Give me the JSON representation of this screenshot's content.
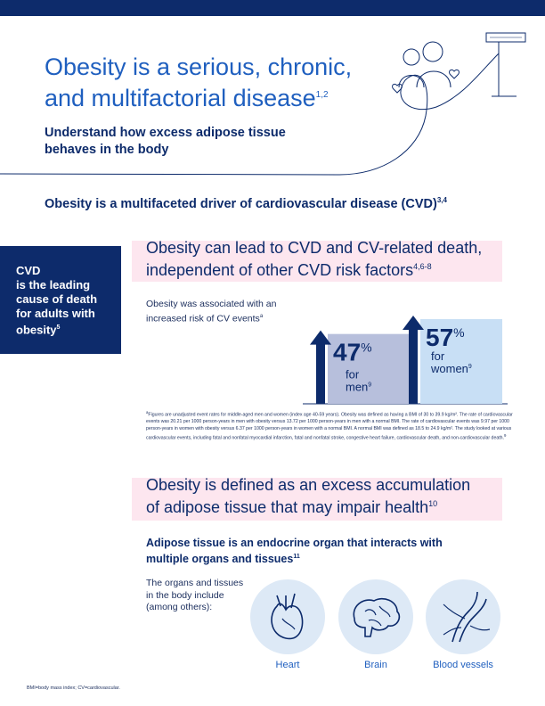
{
  "header": {
    "title_line1": "Obesity is a serious, chronic,",
    "title_line2": "and multifactorial disease",
    "title_ref": "1,2",
    "subtitle_line1": "Understand how excess adipose tissue",
    "subtitle_line2": "behaves in the body"
  },
  "section1": {
    "text": "Obesity is a multifaceted driver of cardiovascular disease (CVD)",
    "ref": "3,4"
  },
  "cvd_box": {
    "line1": "CVD",
    "line2": "is the leading",
    "line3": "cause of death",
    "line4": "for adults with",
    "line5": "obesity",
    "ref": "5"
  },
  "cv_heading": {
    "line1": "Obesity can lead to CVD and CV-related death,",
    "line2": "independent of other CVD risk factors",
    "ref": "4,6-8"
  },
  "association": {
    "line1": "Obesity was associated with an",
    "line2": "increased risk of CV events",
    "ref": "a"
  },
  "chart_data": {
    "type": "bar",
    "categories": [
      "men",
      "women"
    ],
    "values": [
      47,
      57
    ],
    "labels": [
      {
        "value": "47",
        "unit": "%",
        "line1": "for",
        "line2": "men",
        "ref": "9"
      },
      {
        "value": "57",
        "unit": "%",
        "line1": "for",
        "line2": "women",
        "ref": "9"
      }
    ],
    "colors": {
      "men_bar": "#b7bfdc",
      "women_bar": "#c8dff5",
      "arrow": "#0d2b6b"
    }
  },
  "footnote": {
    "ref": "a",
    "text": "Figures are unadjusted event rates for middle-aged men and women (index age 40-59 years). Obesity was defined as having a BMI of 30 to 39.9 kg/m². The rate of cardiovascular events was 20.21 per 1000 person-years in men with obesity versus 13.72 per 1000 person-years in men with a normal BMI. The rate of cardiovascular events was 9.97 per 1000 person-years in women with obesity versus 6.37 per 1000 person-years in women with a normal BMI. A normal BMI was defined as 18.5 to 24.9 kg/m². The study looked at various cardiovascular events, including fatal and nonfatal myocardial infarction, fatal and nonfatal stroke, congestive heart failure, cardiovascular death, and non-cardiovascular death.",
    "end_ref": "9"
  },
  "adipose_heading": {
    "line1": "Obesity is defined as an excess accumulation",
    "line2": "of adipose tissue that may impair health",
    "ref": "10"
  },
  "adipose_sub": {
    "line1": "Adipose tissue is an endocrine organ that interacts with",
    "line2": "multiple organs and tissues",
    "ref": "11"
  },
  "organs_intro": {
    "line1": "The organs and tissues",
    "line2": "in the body include",
    "line3": "(among others):"
  },
  "organs": [
    {
      "label": "Heart",
      "icon": "heart-organ-icon"
    },
    {
      "label": "Brain",
      "icon": "brain-icon"
    },
    {
      "label": "Blood vessels",
      "icon": "blood-vessels-icon"
    }
  ],
  "abbreviations": "BMI=body mass index; CV=cardiovascular.",
  "colors": {
    "navy": "#0d2b6b",
    "blue": "#1f5fbf",
    "pink": "#fde6ef",
    "light_blue": "#dde9f6"
  }
}
